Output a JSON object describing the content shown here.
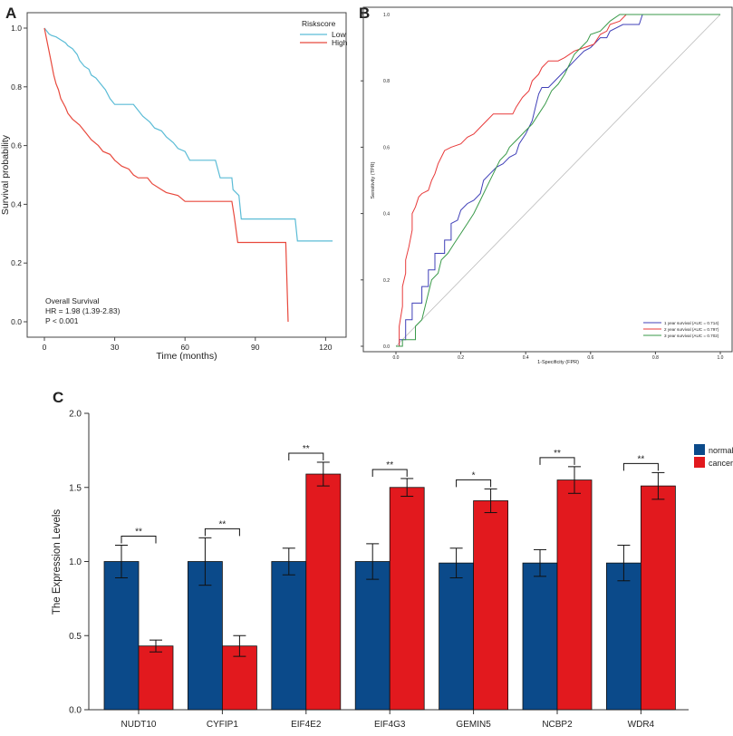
{
  "chart_data": [
    {
      "panel": "A",
      "type": "line",
      "xlabel": "Time (months)",
      "ylabel": "Survival probability",
      "xlim": [
        0,
        125
      ],
      "ylim": [
        0,
        1.0
      ],
      "x_ticks": [
        "0",
        "30",
        "60",
        "90",
        "120"
      ],
      "y_ticks": [
        "0.0",
        "0.2",
        "0.4",
        "0.6",
        "0.8",
        "1.0"
      ],
      "legend_title": "Riskscore",
      "legend_position": "top-right",
      "annotation": [
        "Overall Survival",
        "HR = 1.98 (1.39-2.83)",
        "P < 0.001"
      ],
      "series": [
        {
          "name": "Low",
          "color": "#5bbcd6",
          "points": [
            [
              0,
              1.0
            ],
            [
              1,
              0.99
            ],
            [
              2,
              0.98
            ],
            [
              3,
              0.975
            ],
            [
              5,
              0.97
            ],
            [
              7,
              0.96
            ],
            [
              9,
              0.95
            ],
            [
              10,
              0.94
            ],
            [
              12,
              0.93
            ],
            [
              14,
              0.91
            ],
            [
              15,
              0.89
            ],
            [
              17,
              0.87
            ],
            [
              19,
              0.86
            ],
            [
              20,
              0.84
            ],
            [
              22,
              0.83
            ],
            [
              24,
              0.81
            ],
            [
              26,
              0.79
            ],
            [
              28,
              0.76
            ],
            [
              30,
              0.74
            ],
            [
              38,
              0.74
            ],
            [
              40,
              0.72
            ],
            [
              42,
              0.7
            ],
            [
              45,
              0.68
            ],
            [
              47,
              0.66
            ],
            [
              50,
              0.65
            ],
            [
              52,
              0.63
            ],
            [
              55,
              0.61
            ],
            [
              57,
              0.59
            ],
            [
              60,
              0.58
            ],
            [
              62,
              0.55
            ],
            [
              73,
              0.55
            ],
            [
              75,
              0.49
            ],
            [
              80,
              0.49
            ],
            [
              80.5,
              0.45
            ],
            [
              83,
              0.43
            ],
            [
              84,
              0.35
            ],
            [
              107,
              0.35
            ],
            [
              108,
              0.275
            ],
            [
              123,
              0.275
            ]
          ]
        },
        {
          "name": "High",
          "color": "#e8493d",
          "points": [
            [
              0,
              1.0
            ],
            [
              1,
              0.96
            ],
            [
              2,
              0.92
            ],
            [
              3,
              0.88
            ],
            [
              4,
              0.84
            ],
            [
              5,
              0.81
            ],
            [
              6,
              0.79
            ],
            [
              7,
              0.76
            ],
            [
              9,
              0.73
            ],
            [
              10,
              0.71
            ],
            [
              12,
              0.69
            ],
            [
              15,
              0.67
            ],
            [
              18,
              0.64
            ],
            [
              20,
              0.62
            ],
            [
              23,
              0.6
            ],
            [
              25,
              0.58
            ],
            [
              28,
              0.57
            ],
            [
              30,
              0.55
            ],
            [
              33,
              0.53
            ],
            [
              36,
              0.52
            ],
            [
              38,
              0.5
            ],
            [
              40,
              0.49
            ],
            [
              44,
              0.49
            ],
            [
              46,
              0.47
            ],
            [
              50,
              0.45
            ],
            [
              52,
              0.44
            ],
            [
              57,
              0.43
            ],
            [
              60,
              0.41
            ],
            [
              80,
              0.41
            ],
            [
              81,
              0.36
            ],
            [
              82.5,
              0.27
            ],
            [
              103,
              0.27
            ],
            [
              104,
              0.0
            ]
          ]
        }
      ]
    },
    {
      "panel": "B",
      "type": "line",
      "xlabel": "1-Specificity (FPR)",
      "ylabel": "Sensitivity (TPR)",
      "xlim": [
        0,
        1
      ],
      "ylim": [
        0,
        1
      ],
      "x_ticks": [
        "0.0",
        "0.2",
        "0.4",
        "0.6",
        "0.8",
        "1.0"
      ],
      "y_ticks": [
        "0.0",
        "0.2",
        "0.4",
        "0.6",
        "0.8",
        "1.0"
      ],
      "legend_position": "bottom-right",
      "series": [
        {
          "name": "1 year survival (AUC = 0.714)",
          "color": "#4040b8",
          "points": [
            [
              0,
              0
            ],
            [
              0.01,
              0
            ],
            [
              0.01,
              0.02
            ],
            [
              0.03,
              0.02
            ],
            [
              0.03,
              0.08
            ],
            [
              0.05,
              0.08
            ],
            [
              0.05,
              0.13
            ],
            [
              0.08,
              0.13
            ],
            [
              0.08,
              0.18
            ],
            [
              0.1,
              0.18
            ],
            [
              0.1,
              0.23
            ],
            [
              0.12,
              0.23
            ],
            [
              0.12,
              0.28
            ],
            [
              0.15,
              0.28
            ],
            [
              0.15,
              0.32
            ],
            [
              0.17,
              0.32
            ],
            [
              0.17,
              0.37
            ],
            [
              0.19,
              0.38
            ],
            [
              0.2,
              0.41
            ],
            [
              0.22,
              0.43
            ],
            [
              0.24,
              0.44
            ],
            [
              0.26,
              0.46
            ],
            [
              0.27,
              0.5
            ],
            [
              0.29,
              0.52
            ],
            [
              0.31,
              0.54
            ],
            [
              0.33,
              0.55
            ],
            [
              0.35,
              0.57
            ],
            [
              0.37,
              0.58
            ],
            [
              0.38,
              0.61
            ],
            [
              0.4,
              0.64
            ],
            [
              0.42,
              0.68
            ],
            [
              0.43,
              0.72
            ],
            [
              0.44,
              0.76
            ],
            [
              0.45,
              0.78
            ],
            [
              0.47,
              0.78
            ],
            [
              0.5,
              0.81
            ],
            [
              0.53,
              0.84
            ],
            [
              0.55,
              0.86
            ],
            [
              0.58,
              0.89
            ],
            [
              0.6,
              0.9
            ],
            [
              0.63,
              0.93
            ],
            [
              0.65,
              0.93
            ],
            [
              0.66,
              0.95
            ],
            [
              0.7,
              0.97
            ],
            [
              0.75,
              0.97
            ],
            [
              0.76,
              1.0
            ],
            [
              1,
              1
            ]
          ]
        },
        {
          "name": "2 year survival (AUC = 0.797)",
          "color": "#e83a3a",
          "points": [
            [
              0,
              0
            ],
            [
              0.01,
              0
            ],
            [
              0.01,
              0.06
            ],
            [
              0.02,
              0.12
            ],
            [
              0.02,
              0.18
            ],
            [
              0.03,
              0.22
            ],
            [
              0.03,
              0.26
            ],
            [
              0.04,
              0.3
            ],
            [
              0.05,
              0.35
            ],
            [
              0.05,
              0.4
            ],
            [
              0.06,
              0.42
            ],
            [
              0.07,
              0.45
            ],
            [
              0.08,
              0.46
            ],
            [
              0.1,
              0.47
            ],
            [
              0.11,
              0.5
            ],
            [
              0.12,
              0.52
            ],
            [
              0.13,
              0.55
            ],
            [
              0.14,
              0.57
            ],
            [
              0.15,
              0.59
            ],
            [
              0.17,
              0.6
            ],
            [
              0.2,
              0.61
            ],
            [
              0.22,
              0.63
            ],
            [
              0.24,
              0.64
            ],
            [
              0.26,
              0.66
            ],
            [
              0.28,
              0.68
            ],
            [
              0.3,
              0.7
            ],
            [
              0.36,
              0.7
            ],
            [
              0.37,
              0.72
            ],
            [
              0.39,
              0.75
            ],
            [
              0.41,
              0.77
            ],
            [
              0.42,
              0.8
            ],
            [
              0.44,
              0.82
            ],
            [
              0.45,
              0.84
            ],
            [
              0.47,
              0.86
            ],
            [
              0.5,
              0.86
            ],
            [
              0.52,
              0.87
            ],
            [
              0.55,
              0.89
            ],
            [
              0.58,
              0.9
            ],
            [
              0.61,
              0.91
            ],
            [
              0.63,
              0.94
            ],
            [
              0.65,
              0.95
            ],
            [
              0.66,
              0.97
            ],
            [
              0.69,
              0.98
            ],
            [
              0.71,
              1.0
            ],
            [
              1,
              1
            ]
          ]
        },
        {
          "name": "3 year survival (AUC = 0.702)",
          "color": "#3a9a4a",
          "points": [
            [
              0,
              0
            ],
            [
              0.02,
              0
            ],
            [
              0.02,
              0.02
            ],
            [
              0.06,
              0.02
            ],
            [
              0.06,
              0.06
            ],
            [
              0.08,
              0.08
            ],
            [
              0.09,
              0.12
            ],
            [
              0.1,
              0.16
            ],
            [
              0.11,
              0.2
            ],
            [
              0.13,
              0.22
            ],
            [
              0.14,
              0.26
            ],
            [
              0.16,
              0.28
            ],
            [
              0.18,
              0.31
            ],
            [
              0.2,
              0.34
            ],
            [
              0.22,
              0.37
            ],
            [
              0.24,
              0.4
            ],
            [
              0.26,
              0.44
            ],
            [
              0.28,
              0.48
            ],
            [
              0.3,
              0.52
            ],
            [
              0.32,
              0.56
            ],
            [
              0.34,
              0.58
            ],
            [
              0.35,
              0.6
            ],
            [
              0.37,
              0.62
            ],
            [
              0.4,
              0.65
            ],
            [
              0.42,
              0.67
            ],
            [
              0.44,
              0.7
            ],
            [
              0.46,
              0.73
            ],
            [
              0.48,
              0.77
            ],
            [
              0.5,
              0.79
            ],
            [
              0.52,
              0.82
            ],
            [
              0.54,
              0.86
            ],
            [
              0.55,
              0.88
            ],
            [
              0.57,
              0.9
            ],
            [
              0.59,
              0.92
            ],
            [
              0.6,
              0.94
            ],
            [
              0.63,
              0.95
            ],
            [
              0.65,
              0.97
            ],
            [
              0.66,
              0.98
            ],
            [
              0.69,
              1.0
            ],
            [
              1,
              1
            ]
          ]
        }
      ]
    },
    {
      "panel": "C",
      "type": "bar",
      "ylabel": "The Expression Levels",
      "ylim": [
        0,
        2.0
      ],
      "y_ticks": [
        "0.0",
        "0.5",
        "1.0",
        "1.5",
        "2.0"
      ],
      "categories": [
        "NUDT10",
        "CYFIP1",
        "EIF4E2",
        "EIF4G3",
        "GEMIN5",
        "NCBP2",
        "WDR4"
      ],
      "legend_position": "top-right",
      "series": [
        {
          "name": "normal",
          "color": "#0b4a8a",
          "values": [
            1.0,
            1.0,
            1.0,
            1.0,
            0.99,
            0.99,
            0.99
          ],
          "errors": [
            0.11,
            0.16,
            0.09,
            0.12,
            0.1,
            0.09,
            0.12
          ]
        },
        {
          "name": "cancer",
          "color": "#e2191e",
          "values": [
            0.43,
            0.43,
            1.59,
            1.5,
            1.41,
            1.55,
            1.51
          ],
          "errors": [
            0.04,
            0.07,
            0.08,
            0.06,
            0.08,
            0.09,
            0.09
          ]
        }
      ],
      "significance": [
        "**",
        "**",
        "**",
        "**",
        "*",
        "**",
        "**"
      ]
    }
  ],
  "panel_labels": [
    "A",
    "B",
    "C"
  ]
}
